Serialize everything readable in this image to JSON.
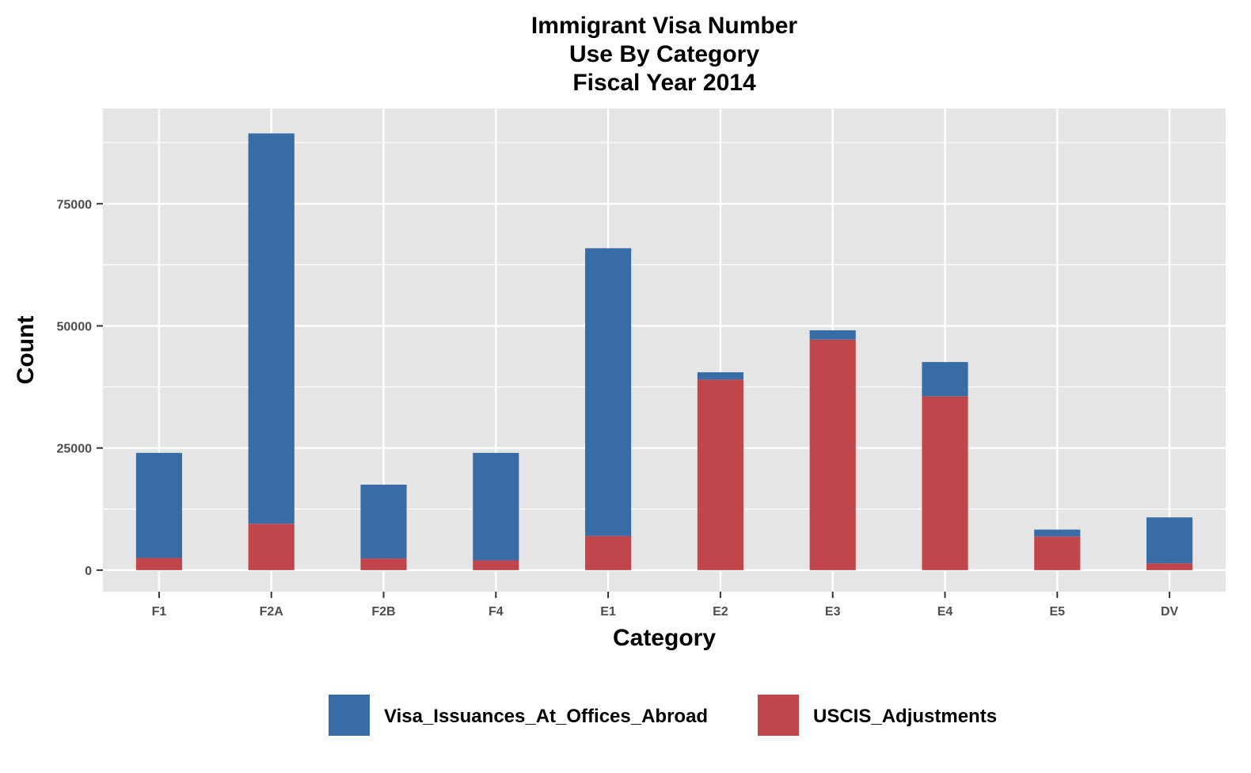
{
  "chart_data": {
    "type": "bar",
    "stacked": true,
    "title_lines": [
      "Immigrant Visa Number",
      "Use By Category",
      "Fiscal Year 2014"
    ],
    "xlabel": "Category",
    "ylabel": "Count",
    "categories": [
      "F1",
      "F2A",
      "F2B",
      "F4",
      "E1",
      "E2",
      "E3",
      "E4",
      "E5",
      "DV"
    ],
    "series": [
      {
        "name": "Visa_Issuances_At_Offices_Abroad",
        "color": "#386CA6",
        "values": [
          21500,
          79900,
          15100,
          22000,
          58900,
          1500,
          1900,
          7000,
          1400,
          9400
        ]
      },
      {
        "name": "USCIS_Adjustments",
        "color": "#C1464B",
        "values": [
          2500,
          9500,
          2400,
          2000,
          7000,
          39000,
          47200,
          35600,
          6900,
          1400
        ]
      }
    ],
    "ylim": [
      -4400,
      94500
    ],
    "yticks": [
      0,
      25000,
      50000,
      75000
    ],
    "ytick_labels": [
      "0",
      "25000",
      "50000",
      "75000"
    ],
    "grid": true,
    "panel_background": "#E5E5E5",
    "grid_color": "#FFFFFF",
    "legend_position": "bottom"
  }
}
